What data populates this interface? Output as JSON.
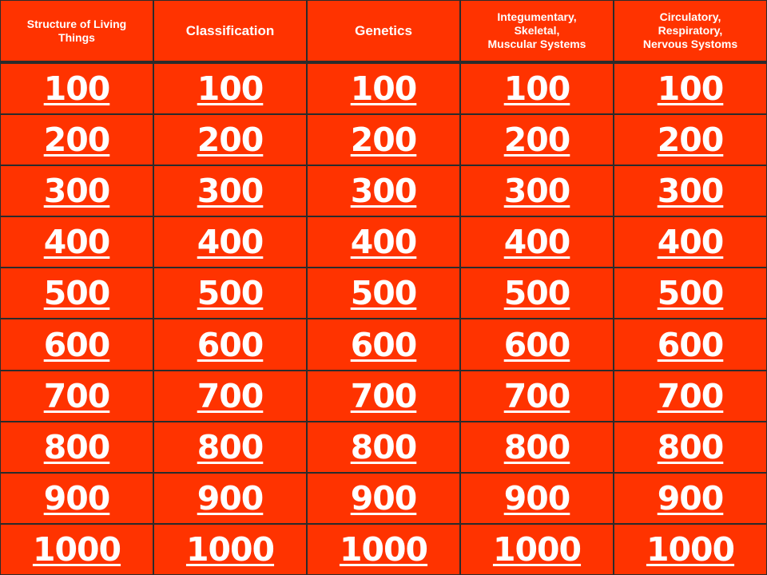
{
  "board": {
    "colors": {
      "cell_background": "#ff3300",
      "grid_line": "#2b2b2b",
      "text": "#ffffff"
    },
    "categories": [
      "Structure of Living\nThings",
      "Classification",
      "Genetics",
      "Integumentary,\nSkeletal,\nMuscular Systems",
      "Circulatory,\nRespiratory,\nNervous Systoms"
    ],
    "values": [
      "100",
      "200",
      "300",
      "400",
      "500",
      "600",
      "700",
      "800",
      "900",
      "1000"
    ]
  }
}
